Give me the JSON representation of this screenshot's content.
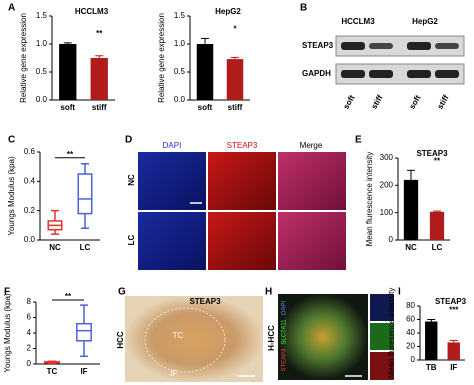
{
  "chart_data": [
    {
      "type": "bar",
      "title": "HCCLM3",
      "y_label": "Relative gene expression",
      "categories": [
        "soft",
        "stiff"
      ],
      "values": [
        1.0,
        0.75
      ],
      "errors": [
        0.02,
        0.04
      ],
      "colors": [
        "#000000",
        "#b01c1c"
      ],
      "ylim": [
        0,
        1.5
      ],
      "yticks": [
        {
          "value": 0,
          "label": "0.0"
        },
        0.5,
        {
          "value": 1,
          "label": "1.0"
        },
        1.5
      ],
      "annotation": "**"
    },
    {
      "type": "bar",
      "title": "HepG2",
      "y_label": "Relative gene expression",
      "categories": [
        "soft",
        "stiff"
      ],
      "values": [
        1.0,
        0.73
      ],
      "errors": [
        0.1,
        0.03
      ],
      "colors": [
        "#000000",
        "#b01c1c"
      ],
      "ylim": [
        0,
        1.5
      ],
      "yticks": [
        {
          "value": 0,
          "label": "0.0"
        },
        0.5,
        {
          "value": 1,
          "label": "1.0"
        },
        1.5
      ],
      "annotation": "*"
    },
    {
      "type": "box",
      "y_label": "Youngs Modulus (kpa)",
      "categories": [
        "NC",
        "LC"
      ],
      "boxes": [
        {
          "min": 0.04,
          "q1": 0.07,
          "median": 0.1,
          "q3": 0.13,
          "max": 0.2
        },
        {
          "min": 0.08,
          "q1": 0.18,
          "median": 0.28,
          "q3": 0.45,
          "max": 0.52
        }
      ],
      "colors": [
        "#e8332a",
        "#4a63d8"
      ],
      "ylim": [
        0,
        0.6
      ],
      "yticks": [
        {
          "value": 0,
          "label": "0.0"
        },
        0.2,
        0.4,
        0.6
      ],
      "annotation": "**"
    },
    {
      "type": "bar",
      "title": "STEAP3",
      "y_label": "Mean flurescence intensity",
      "categories": [
        "NC",
        "LC"
      ],
      "values": [
        220,
        103
      ],
      "errors": [
        35,
        3
      ],
      "colors": [
        "#000000",
        "#b01c1c"
      ],
      "ylim": [
        0,
        300
      ],
      "yticks": [
        0,
        100,
        200,
        300
      ],
      "annotation": "**"
    },
    {
      "type": "box",
      "y_label": "Youngs Modulus (kpa)",
      "categories": [
        "TC",
        "IF"
      ],
      "boxes": [
        {
          "min": 0.1,
          "q1": 0.15,
          "median": 0.2,
          "q3": 0.3,
          "max": 0.35
        },
        {
          "min": 1.0,
          "q1": 3.0,
          "median": 4.3,
          "q3": 5.2,
          "max": 7.6
        }
      ],
      "colors": [
        "#e8332a",
        "#4a63d8"
      ],
      "ylim": [
        0,
        8
      ],
      "yticks": [
        0,
        2,
        4,
        6,
        8
      ],
      "annotation": "**"
    },
    {
      "type": "bar",
      "title": "STEAP3",
      "y_label": "Mean fluresence intensity",
      "categories": [
        "TB",
        "IF"
      ],
      "values": [
        57,
        26
      ],
      "errors": [
        3,
        3
      ],
      "colors": [
        "#000000",
        "#b01c1c"
      ],
      "ylim": [
        0,
        80
      ],
      "yticks": [
        0,
        20,
        40,
        60,
        80
      ],
      "annotation": "***"
    }
  ],
  "panels": {
    "letters": [
      "A",
      "B",
      "C",
      "D",
      "E",
      "F",
      "G",
      "H",
      "I"
    ],
    "blot": {
      "cells": [
        "HCCLM3",
        "HepG2"
      ],
      "rows": [
        "STEAP3",
        "GAPDH"
      ],
      "lanes": [
        "soft",
        "stiff",
        "soft",
        "stiff"
      ]
    },
    "staining": {
      "columns": [
        "DAPI",
        "STEAP3",
        "Merge"
      ],
      "rows": [
        "NC",
        "LC"
      ]
    },
    "ihc": {
      "title": "STEAP3",
      "side": "HCC",
      "regions": [
        "TC",
        "IF"
      ]
    },
    "fluor": {
      "side": "H-HCC",
      "stains": [
        "DAPI",
        "SLC7A11",
        "STEAP3"
      ]
    }
  }
}
